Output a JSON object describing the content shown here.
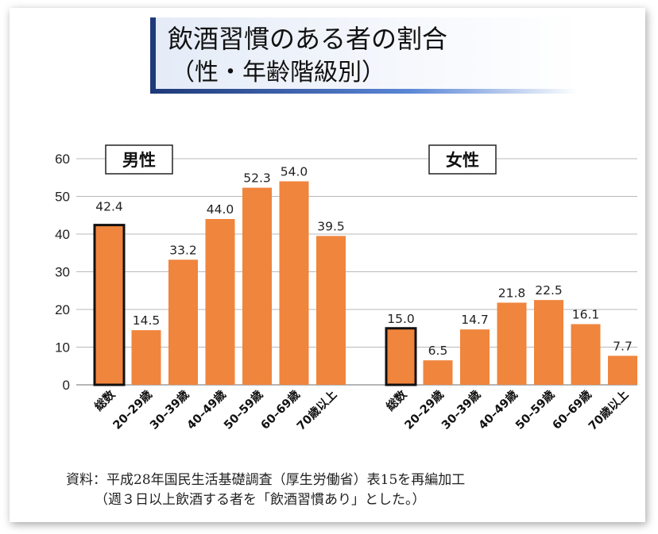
{
  "title": {
    "line1": "飲酒習慣のある者の割合",
    "line2": "（性・年齢階級別）"
  },
  "chart_data": [
    {
      "type": "bar",
      "panel": "男性",
      "categories": [
        "総数",
        "20–29歳",
        "30–39歳",
        "40–49歳",
        "50–59歳",
        "60–69歳",
        "70歳以上"
      ],
      "values": [
        42.4,
        14.5,
        33.2,
        44.0,
        52.3,
        54.0,
        39.5
      ],
      "value_labels": [
        "42.4",
        "14.5",
        "33.2",
        "44.0",
        "52.3",
        "54.0",
        "39.5"
      ],
      "highlight_index": 0,
      "ylim": [
        0,
        60
      ],
      "yticks": [
        0,
        10,
        20,
        30,
        40,
        50,
        60
      ],
      "grid": true
    },
    {
      "type": "bar",
      "panel": "女性",
      "categories": [
        "総数",
        "20–29歳",
        "30–39歳",
        "40–49歳",
        "50–59歳",
        "60–69歳",
        "70歳以上"
      ],
      "values": [
        15.0,
        6.5,
        14.7,
        21.8,
        22.5,
        16.1,
        7.7
      ],
      "value_labels": [
        "15.0",
        "6.5",
        "14.7",
        "21.8",
        "22.5",
        "16.1",
        "7.7"
      ],
      "highlight_index": 0,
      "ylim": [
        0,
        60
      ],
      "yticks": [
        0,
        10,
        20,
        30,
        40,
        50,
        60
      ],
      "grid": true
    }
  ],
  "colors": {
    "bar": "#f0853d",
    "highlight_border": "#111111",
    "grid": "#b9b9b9",
    "title_accent": "#1f3a7a"
  },
  "footnote": {
    "line1": "資料：平成28年国民生活基礎調査（厚生労働省）表15を再編加工",
    "line2": "（週３日以上飲酒する者を「飲酒習慣あり」とした。）"
  }
}
